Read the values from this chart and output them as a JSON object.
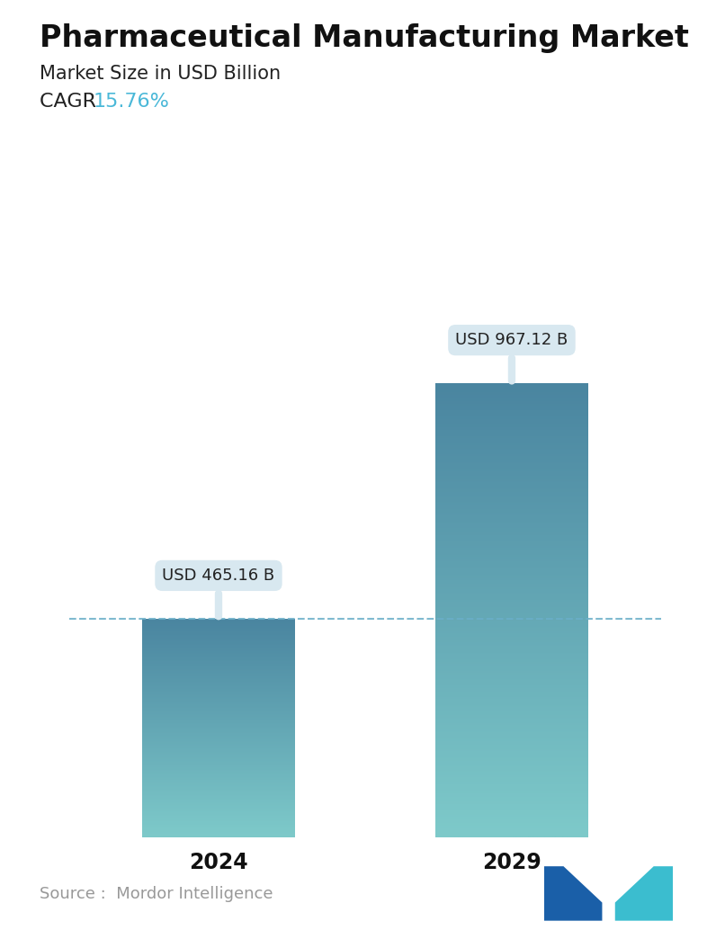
{
  "title": "Pharmaceutical Manufacturing Market",
  "subtitle": "Market Size in USD Billion",
  "cagr_label": "CAGR  ",
  "cagr_value": "15.76%",
  "cagr_color": "#4ab8d8",
  "categories": [
    "2024",
    "2029"
  ],
  "values": [
    465.16,
    967.12
  ],
  "bar_labels": [
    "USD 465.16 B",
    "USD 967.12 B"
  ],
  "bar_top_color": "#4a85a0",
  "bar_bottom_color": "#7ecaca",
  "dashed_line_color": "#6aaec8",
  "dashed_line_value": 465.16,
  "callout_bg_color": "#d8e8f0",
  "callout_text_color": "#222222",
  "source_text": "Source :  Mordor Intelligence",
  "source_color": "#999999",
  "background_color": "#ffffff",
  "title_fontsize": 24,
  "subtitle_fontsize": 15,
  "cagr_fontsize": 16,
  "bar_label_fontsize": 13,
  "axis_label_fontsize": 17,
  "source_fontsize": 13,
  "ylim": [
    0,
    1150
  ],
  "bar_width": 0.52
}
